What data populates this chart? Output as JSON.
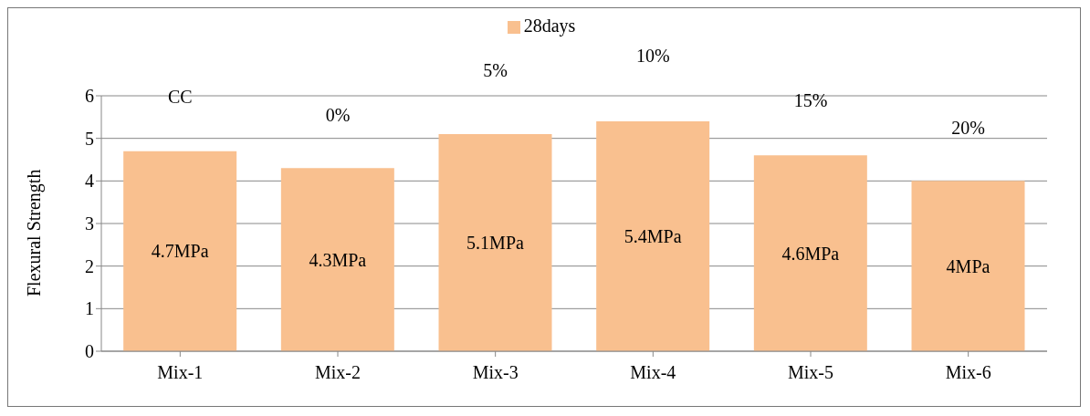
{
  "chart_data": {
    "type": "bar",
    "ylabel": "Flexural Strength",
    "categories": [
      "Mix-1",
      "Mix-2",
      "Mix-3",
      "Mix-4",
      "Mix-5",
      "Mix-6"
    ],
    "series": [
      {
        "name": "28days",
        "color": "#f9c08f",
        "values": [
          4.7,
          4.3,
          5.1,
          5.4,
          4.6,
          4.0
        ],
        "value_labels": [
          "4.7MPa",
          "4.3MPa",
          "5.1MPa",
          "5.4MPa",
          "4.6MPa",
          "4MPa"
        ]
      }
    ],
    "annotations": [
      "CC",
      "0%",
      "5%",
      "10%",
      "15%",
      "20%"
    ],
    "ylim": [
      0,
      6
    ],
    "yticks": [
      0,
      1,
      2,
      3,
      4,
      5,
      6
    ],
    "grid": "y",
    "legend": "top"
  }
}
